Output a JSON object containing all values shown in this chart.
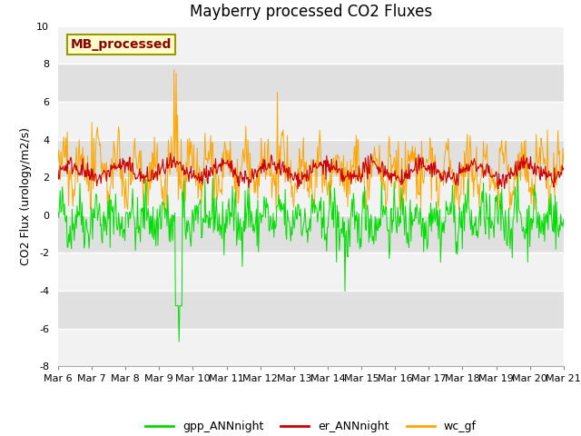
{
  "title": "Mayberry processed CO2 Fluxes",
  "ylabel": "CO2 Flux (urology/m2/s)",
  "ylim": [
    -8,
    10
  ],
  "yticks": [
    -8,
    -6,
    -4,
    -2,
    0,
    2,
    4,
    6,
    8,
    10
  ],
  "x_tick_labels": [
    "Mar 6",
    "Mar 7",
    "Mar 8",
    "Mar 9",
    "Mar 10",
    "Mar 11",
    "Mar 12",
    "Mar 13",
    "Mar 14",
    "Mar 15",
    "Mar 16",
    "Mar 17",
    "Mar 18",
    "Mar 19",
    "Mar 20",
    "Mar 21"
  ],
  "color_gpp": "#00dd00",
  "color_er": "#cc0000",
  "color_wc": "#ffa500",
  "legend_label_gpp": "gpp_ANNnight",
  "legend_label_er": "er_ANNnight",
  "legend_label_wc": "wc_gf",
  "annotation_text": "MB_processed",
  "annotation_color": "#8b0000",
  "annotation_bg": "#ffffcc",
  "annotation_edge": "#999900",
  "band_light": "#f2f2f2",
  "band_dark": "#e0e0e0",
  "fig_bg": "#ffffff",
  "title_fontsize": 12,
  "axis_fontsize": 9,
  "tick_fontsize": 8,
  "legend_fontsize": 9,
  "n_points": 720
}
